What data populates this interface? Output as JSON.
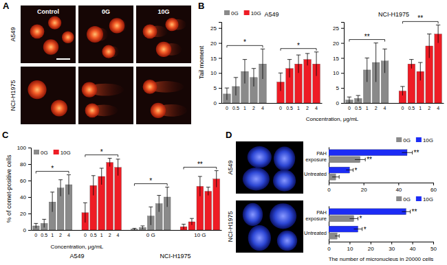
{
  "panel_a": {
    "panel_label": "A",
    "columns": [
      "Control",
      "0G",
      "10G"
    ],
    "rows": [
      "A549",
      "NCI-H1975"
    ]
  },
  "chart_data": [
    {
      "panel_label": "B",
      "type": "bar",
      "ylabel": "Tail moment",
      "xlabel": "Concentration, μg/mL",
      "ylim": [
        0,
        27
      ],
      "yticks": [
        0,
        5,
        10,
        15,
        20,
        25
      ],
      "legend": "upper left",
      "groups": [
        {
          "label": "A549",
          "series": [
            {
              "name": "0G",
              "color": "#8a8a8a",
              "categories": [
                "0",
                "0.5",
                "1",
                "2",
                "4"
              ],
              "values": [
                3,
                5.5,
                10.5,
                8.5,
                13
              ],
              "errors": [
                2,
                3,
                4,
                3,
                5
              ],
              "significance": "*"
            },
            {
              "name": "10G",
              "color": "#ee1c25",
              "categories": [
                "0",
                "0.5",
                "1",
                "2",
                "4"
              ],
              "values": [
                7,
                11.5,
                13,
                14.5,
                13
              ],
              "errors": [
                3,
                3,
                3,
                2,
                4
              ],
              "significance": "*"
            }
          ]
        },
        {
          "label": "NCI-H1975",
          "series": [
            {
              "name": "0G",
              "color": "#8a8a8a",
              "categories": [
                "0",
                "0.5",
                "1",
                "2",
                "4"
              ],
              "values": [
                1,
                1.5,
                11,
                13.5,
                14
              ],
              "errors": [
                1,
                1,
                4,
                6.5,
                4
              ],
              "significance": "**"
            },
            {
              "name": "10G",
              "color": "#ee1c25",
              "categories": [
                "0",
                "0.5",
                "1",
                "2",
                "4"
              ],
              "values": [
                4,
                13,
                10.5,
                19,
                23
              ],
              "errors": [
                1.5,
                1.5,
                3,
                4,
                3
              ],
              "significance": "**"
            }
          ]
        }
      ]
    },
    {
      "panel_label": "C",
      "type": "bar",
      "ylabel": "% of comet-positive cells",
      "xlabel": "Concentration, μg/mL",
      "ylim": [
        0,
        100
      ],
      "yticks": [
        0,
        20,
        40,
        60,
        80,
        100
      ],
      "legend": "upper left",
      "groups": [
        {
          "label": "A549",
          "series": [
            {
              "name": "0G",
              "color": "#8a8a8a",
              "categories": [
                "0",
                "0.5",
                "1",
                "2",
                "4"
              ],
              "values": [
                5,
                8,
                34,
                51,
                55
              ],
              "errors": [
                3,
                5,
                12,
                10,
                12
              ],
              "significance": "*"
            },
            {
              "name": "10G",
              "color": "#ee1c25",
              "categories": [
                "0",
                "0.5",
                "1",
                "2",
                "4"
              ],
              "values": [
                21,
                54,
                65,
                82,
                76
              ],
              "errors": [
                12,
                12,
                10,
                5,
                10
              ],
              "significance": "*"
            }
          ]
        },
        {
          "label": "NCI-H1975",
          "series": [
            {
              "name": "0G",
              "color": "#8a8a8a",
              "label": "0 G",
              "values": [
                1,
                3,
                17,
                32,
                40
              ],
              "errors": [
                1,
                2,
                11,
                10,
                12
              ],
              "significance": "*"
            },
            {
              "name": "10G",
              "color": "#ee1c25",
              "label": "10 G",
              "values": [
                4,
                10,
                53,
                47,
                62
              ],
              "errors": [
                3,
                4,
                12,
                5,
                10
              ],
              "significance": "**"
            }
          ]
        }
      ]
    },
    {
      "panel_label": "D",
      "type": "bar",
      "orientation": "horizontal",
      "xlabel": "The number of micronucleus in 20000 cells",
      "legend": "upper right",
      "groups": [
        {
          "label": "A549",
          "xlim": [
            0,
            60
          ],
          "xticks": [
            0,
            20,
            40,
            60
          ],
          "categories": [
            "PAH exposure",
            "Untreated"
          ],
          "series": [
            {
              "name": "0G",
              "color": "#8a8a8a",
              "values": [
                18,
                4
              ],
              "errors": [
                3,
                2
              ],
              "significance": [
                "**",
                null
              ]
            },
            {
              "name": "10G",
              "color": "#1c2cf5",
              "values": [
                45,
                12
              ],
              "errors": [
                3,
                2
              ],
              "significance": [
                "**",
                "*"
              ]
            }
          ]
        },
        {
          "label": "NCI-H1975",
          "xlim": [
            0,
            50
          ],
          "xticks": [
            0,
            10,
            20,
            30,
            40,
            50
          ],
          "categories": [
            "PAH exposure",
            "Untreated"
          ],
          "series": [
            {
              "name": "0G",
              "color": "#8a8a8a",
              "values": [
                12,
                4
              ],
              "errors": [
                2,
                1
              ],
              "significance": [
                "*",
                null
              ]
            },
            {
              "name": "10G",
              "color": "#1c2cf5",
              "values": [
                37,
                14
              ],
              "errors": [
                2,
                2
              ],
              "significance": [
                "**",
                "*"
              ]
            }
          ]
        }
      ]
    }
  ]
}
